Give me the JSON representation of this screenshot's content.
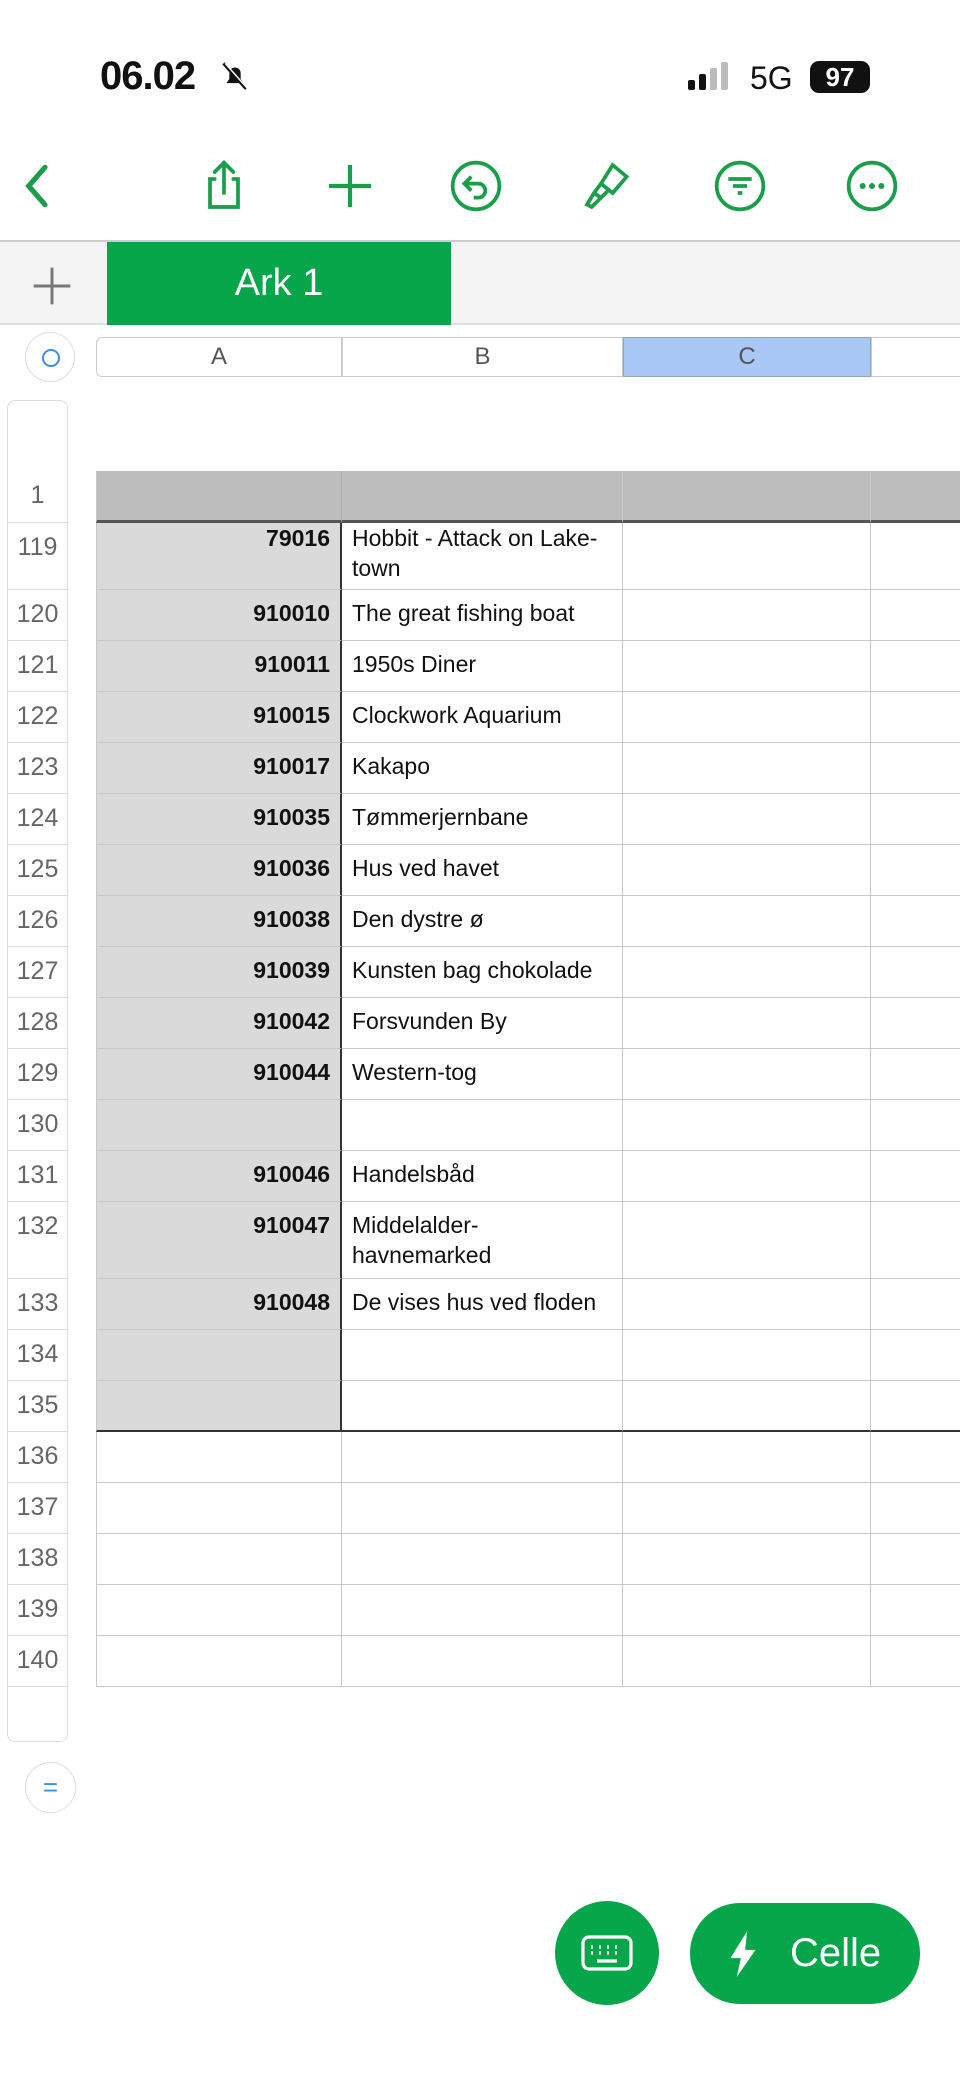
{
  "status": {
    "time": "06.02",
    "network": "5G",
    "battery": "97",
    "accent": "#07a64b"
  },
  "toolbar": {
    "icons": [
      "back-chevron-icon",
      "share-icon",
      "plus-icon",
      "undo-icon",
      "paintbrush-icon",
      "filter-icon",
      "more-icon"
    ]
  },
  "sheet_tabs": {
    "add_icon": "plus-icon",
    "active": "Ark 1"
  },
  "columns": [
    "A",
    "B",
    "C"
  ],
  "selected_column": "C",
  "header_row": "1",
  "rows": [
    {
      "n": "119",
      "a": "79016",
      "b": "Hobbit - Attack on Lake-town"
    },
    {
      "n": "120",
      "a": "910010",
      "b": "The great fishing boat"
    },
    {
      "n": "121",
      "a": "910011",
      "b": "1950s Diner"
    },
    {
      "n": "122",
      "a": "910015",
      "b": "Clockwork Aquarium"
    },
    {
      "n": "123",
      "a": "910017",
      "b": "Kakapo"
    },
    {
      "n": "124",
      "a": "910035",
      "b": "Tømmerjernbane"
    },
    {
      "n": "125",
      "a": "910036",
      "b": "Hus ved havet"
    },
    {
      "n": "126",
      "a": "910038",
      "b": "Den dystre ø"
    },
    {
      "n": "127",
      "a": "910039",
      "b": "Kunsten bag chokolade"
    },
    {
      "n": "128",
      "a": "910042",
      "b": "Forsvunden By"
    },
    {
      "n": "129",
      "a": "910044",
      "b": "Western-tog"
    },
    {
      "n": "130",
      "a": "",
      "b": ""
    },
    {
      "n": "131",
      "a": "910046",
      "b": "Handelsbåd"
    },
    {
      "n": "132",
      "a": "910047",
      "b": "Middelalder-havnemarked"
    },
    {
      "n": "133",
      "a": "910048",
      "b": "De vises hus ved floden"
    },
    {
      "n": "134",
      "a": "",
      "b": ""
    },
    {
      "n": "135",
      "a": "",
      "b": ""
    },
    {
      "n": "136",
      "a": "",
      "b": ""
    },
    {
      "n": "137",
      "a": "",
      "b": ""
    },
    {
      "n": "138",
      "a": "",
      "b": ""
    },
    {
      "n": "139",
      "a": "",
      "b": ""
    },
    {
      "n": "140",
      "a": "",
      "b": ""
    }
  ],
  "bottom": {
    "equals": "=",
    "keyboard_icon": "keyboard-icon",
    "cell_button": "Celle",
    "cell_icon": "lightning-icon"
  }
}
